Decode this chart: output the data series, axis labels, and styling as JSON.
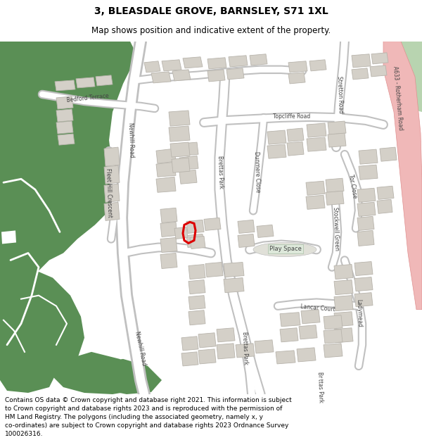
{
  "title": "3, BLEASDALE GROVE, BARNSLEY, S71 1XL",
  "subtitle": "Map shows position and indicative extent of the property.",
  "footer": "Contains OS data © Crown copyright and database right 2021. This information is subject to Crown copyright and database rights 2023 and is reproduced with the permission of HM Land Registry. The polygons (including the associated geometry, namely x, y co-ordinates) are subject to Crown copyright and database rights 2023 Ordnance Survey 100026316.",
  "bg_color": "#f2efe9",
  "map_bg": "#f0ece4",
  "green_color": "#5a8f55",
  "road_color": "#ffffff",
  "road_border": "#c8c8c8",
  "building_color": "#d4d0c8",
  "building_border": "#b8b4ac",
  "red_plot_color": "#dd0000",
  "pink_road_color": "#f0b0b0",
  "title_fontsize": 10,
  "subtitle_fontsize": 8.5,
  "footer_fontsize": 6.5
}
